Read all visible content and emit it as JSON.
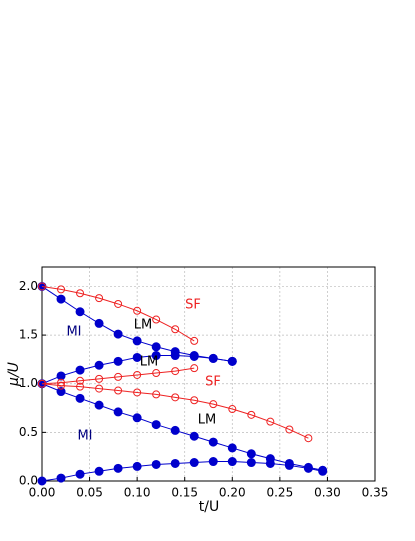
{
  "chart_data": {
    "type": "line",
    "xlabel": "t/U",
    "ylabel": "μ/U",
    "xlim": [
      0,
      0.35
    ],
    "ylim": [
      0,
      2.2
    ],
    "xticks": [
      {
        "value": 0,
        "label": "0.00"
      },
      {
        "value": 0.05,
        "label": "0.05"
      },
      {
        "value": 0.1,
        "label": "0.10"
      },
      {
        "value": 0.15,
        "label": "0.15"
      },
      {
        "value": 0.2,
        "label": "0.20"
      },
      {
        "value": 0.25,
        "label": "0.25"
      },
      {
        "value": 0.3,
        "label": "0.30"
      },
      {
        "value": 0.35,
        "label": "0.35"
      }
    ],
    "yticks": [
      {
        "value": 0,
        "label": "0.0"
      },
      {
        "value": 0.5,
        "label": "0.5"
      },
      {
        "value": 1,
        "label": "1.0"
      },
      {
        "value": 1.5,
        "label": "1.5"
      },
      {
        "value": 2,
        "label": "2.0"
      }
    ],
    "grid": true,
    "series": [
      {
        "color": "#0000cc",
        "marker": "filled",
        "x": [
          0,
          0.02,
          0.04,
          0.06,
          0.08,
          0.1,
          0.12,
          0.14,
          0.16,
          0.18,
          0.2
        ],
        "values": [
          2.0,
          1.87,
          1.74,
          1.62,
          1.51,
          1.44,
          1.38,
          1.33,
          1.29,
          1.26,
          1.23
        ]
      },
      {
        "color": "#0000cc",
        "marker": "filled",
        "x": [
          0,
          0.02,
          0.04,
          0.06,
          0.08,
          0.1,
          0.12,
          0.14,
          0.16,
          0.18,
          0.2
        ],
        "values": [
          1.0,
          1.08,
          1.14,
          1.19,
          1.23,
          1.27,
          1.29,
          1.29,
          1.28,
          1.26,
          1.23
        ]
      },
      {
        "color": "#0000cc",
        "marker": "filled",
        "x": [
          0,
          0.02,
          0.04,
          0.06,
          0.08,
          0.1,
          0.12,
          0.14,
          0.16,
          0.18,
          0.2,
          0.22,
          0.24,
          0.26,
          0.28,
          0.295
        ],
        "values": [
          1.0,
          0.92,
          0.85,
          0.78,
          0.71,
          0.65,
          0.58,
          0.52,
          0.46,
          0.4,
          0.34,
          0.28,
          0.23,
          0.18,
          0.14,
          0.11
        ]
      },
      {
        "color": "#0000cc",
        "marker": "filled",
        "x": [
          0,
          0.02,
          0.04,
          0.06,
          0.08,
          0.1,
          0.12,
          0.14,
          0.16,
          0.18,
          0.2,
          0.22,
          0.24,
          0.26,
          0.28,
          0.295
        ],
        "values": [
          0,
          0.03,
          0.07,
          0.1,
          0.13,
          0.15,
          0.17,
          0.18,
          0.19,
          0.2,
          0.2,
          0.19,
          0.18,
          0.16,
          0.13,
          0.1
        ]
      },
      {
        "color": "#ee2222",
        "marker": "open",
        "x": [
          0,
          0.02,
          0.04,
          0.06,
          0.08,
          0.1,
          0.12,
          0.14,
          0.16
        ],
        "values": [
          2.0,
          1.97,
          1.93,
          1.88,
          1.82,
          1.75,
          1.66,
          1.56,
          1.44
        ]
      },
      {
        "color": "#ee2222",
        "marker": "open",
        "x": [
          0,
          0.02,
          0.04,
          0.06,
          0.08,
          0.1,
          0.12,
          0.14,
          0.16
        ],
        "values": [
          1.0,
          1.01,
          1.03,
          1.05,
          1.07,
          1.09,
          1.11,
          1.13,
          1.16
        ]
      },
      {
        "color": "#ee2222",
        "marker": "open",
        "x": [
          0,
          0.02,
          0.04,
          0.06,
          0.08,
          0.1,
          0.12,
          0.14,
          0.16,
          0.18,
          0.2,
          0.22,
          0.24,
          0.26,
          0.28
        ],
        "values": [
          1.0,
          0.98,
          0.97,
          0.95,
          0.93,
          0.91,
          0.89,
          0.86,
          0.83,
          0.79,
          0.74,
          0.68,
          0.61,
          0.53,
          0.44
        ]
      }
    ],
    "annotations": [
      {
        "text": "SF",
        "color": "#ee2222"
      },
      {
        "text": "SF",
        "color": "#ee2222"
      },
      {
        "text": "LM",
        "color": "#000000"
      },
      {
        "text": "LM",
        "color": "#000000"
      },
      {
        "text": "LM",
        "color": "#000000"
      },
      {
        "text": "MI",
        "color": "#000080"
      },
      {
        "text": "MI",
        "color": "#000080"
      }
    ]
  }
}
